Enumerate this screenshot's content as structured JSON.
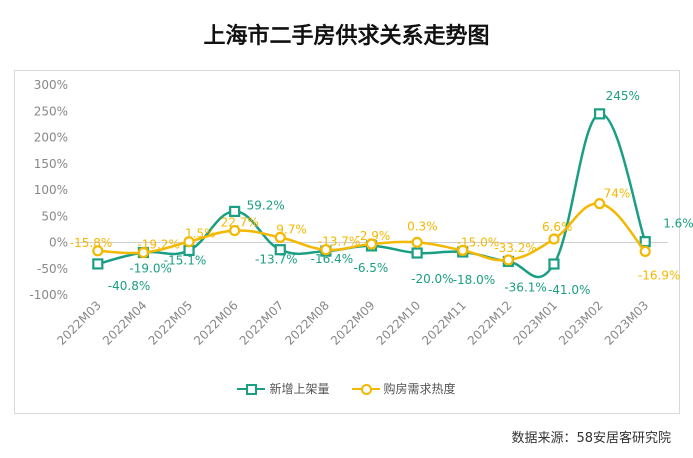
{
  "title": "上海市二手房供求关系走势图",
  "source": "数据来源：58安居客研究院",
  "colors": {
    "series1": "#1a9e84",
    "series2": "#f5b800",
    "axis_text": "#888888",
    "grid": "#e6e6e6"
  },
  "chart_data": {
    "type": "line",
    "categories": [
      "2022M03",
      "2022M04",
      "2022M05",
      "2022M06",
      "2022M07",
      "2022M08",
      "2022M09",
      "2022M10",
      "2022M11",
      "2022M12",
      "2023M01",
      "2023M02",
      "2023M03"
    ],
    "ylim": [
      -100,
      300
    ],
    "yticks": [
      "-100%",
      "-50%",
      "0%",
      "50%",
      "100%",
      "150%",
      "200%",
      "250%",
      "300%"
    ],
    "legend_position": "bottom",
    "series": [
      {
        "name": "新增上架量",
        "marker": "square",
        "color": "#1a9e84",
        "values": [
          -40.8,
          -19.0,
          -15.1,
          59.2,
          -13.7,
          -16.4,
          -6.5,
          -20.0,
          -18.0,
          -36.1,
          -41.0,
          245,
          1.6
        ],
        "labels": [
          "-40.8%",
          "-19.0%",
          "-15.1%",
          "59.2%",
          "-13.7%",
          "-16.4%",
          "-6.5%",
          "-20.0%",
          "-18.0%",
          "-36.1%",
          "-41.0%",
          "245%",
          "1.6%"
        ]
      },
      {
        "name": "购房需求热度",
        "marker": "circle",
        "color": "#f5b800",
        "values": [
          -15.8,
          -19.2,
          1.5,
          22.7,
          9.7,
          -13.7,
          -2.9,
          0.3,
          -15.0,
          -33.2,
          6.6,
          74,
          -16.9
        ],
        "labels": [
          "-15.8%",
          "-19.2%",
          "1.5%",
          "22.7%",
          "9.7%",
          "-13.7%",
          "-2.9%",
          "0.3%",
          "-15.0%",
          "-33.2%",
          "6.6%",
          "74%",
          "-16.9%"
        ]
      }
    ]
  }
}
